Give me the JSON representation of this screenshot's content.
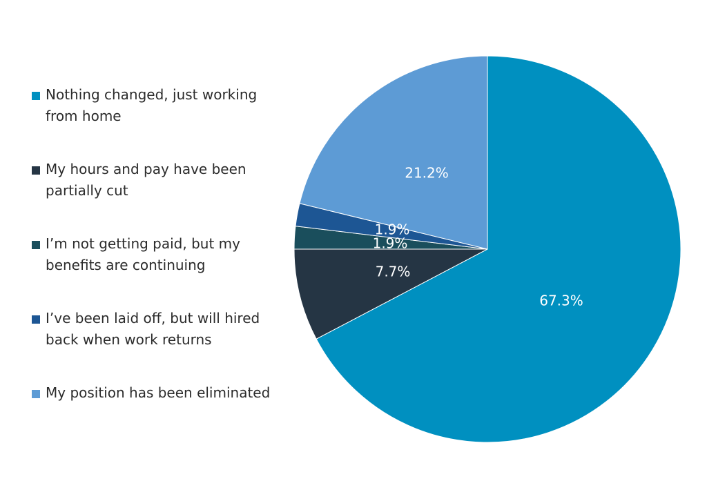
{
  "chart_data": {
    "type": "pie",
    "title": "",
    "categories": [
      "Nothing changed, just working\nfrom home",
      "My hours and pay have been\npartially cut",
      "I’m not getting paid, but my\nbenefits are continuing",
      "I’ve been laid off, but will hired\nback when work returns",
      "My position has been eliminated"
    ],
    "values": [
      67.3,
      7.7,
      1.9,
      1.9,
      21.2
    ],
    "value_labels": [
      "67.3%",
      "7.7%",
      "1.9%",
      "1.9%",
      "21.2%"
    ],
    "colors": [
      "#0090c0",
      "#253544",
      "#1a4e5c",
      "#1d5694",
      "#5d9bd5"
    ],
    "legend_position": "left"
  }
}
